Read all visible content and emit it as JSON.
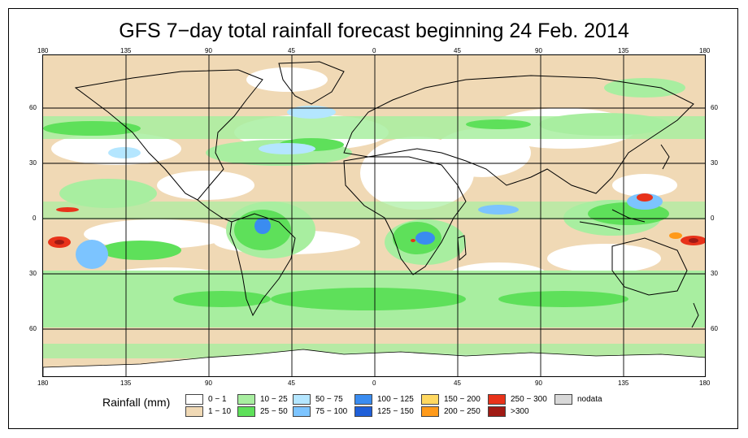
{
  "title": "GFS 7−day total rainfall forecast beginning 24 Feb. 2014",
  "axis": {
    "top_lon": [
      "180",
      "135",
      "90",
      "45",
      "0",
      "45",
      "90",
      "135",
      "180"
    ],
    "bottom_lon": [
      "180",
      "135",
      "90",
      "45",
      "0",
      "45",
      "90",
      "135",
      "180"
    ],
    "left_lat": [
      "60",
      "30",
      "0",
      "30",
      "60"
    ],
    "right_lat": [
      "60",
      "30",
      "0",
      "30",
      "60"
    ]
  },
  "legend": {
    "title": "Rainfall (mm)",
    "items": [
      {
        "label": "0 − 1",
        "color": "#ffffff"
      },
      {
        "label": "1 − 10",
        "color": "#f0d9b5"
      },
      {
        "label": "10 − 25",
        "color": "#a8eea0"
      },
      {
        "label": "25 − 50",
        "color": "#5ee05a"
      },
      {
        "label": "50 − 75",
        "color": "#b4e6ff"
      },
      {
        "label": "75 − 100",
        "color": "#7cc4ff"
      },
      {
        "label": "100 − 125",
        "color": "#3a8cf0"
      },
      {
        "label": "125 − 150",
        "color": "#1f5fd8"
      },
      {
        "label": "150 − 200",
        "color": "#ffd860"
      },
      {
        "label": "200 − 250",
        "color": "#ff9a1a"
      },
      {
        "label": "250 − 300",
        "color": "#e8321a"
      },
      {
        "label": ">300",
        "color": "#a01a14"
      },
      {
        "label": "nodata",
        "color": "#d8d8d8"
      }
    ]
  }
}
